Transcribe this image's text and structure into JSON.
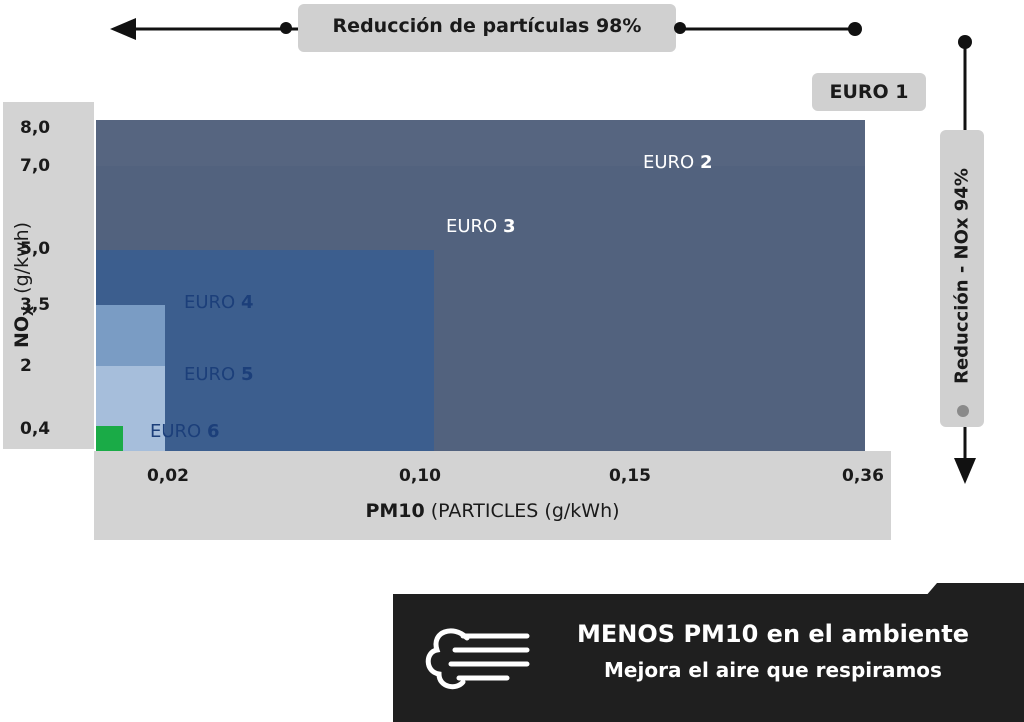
{
  "header": {
    "particle_reduction": "Reducción de partículas 98%",
    "nox_reduction": "Reducción -  NOx 94%",
    "euro1_label": "EURO 1"
  },
  "chart_data": {
    "type": "area",
    "title": "",
    "xlabel_bold": "PM10",
    "xlabel_rest": " (PARTICLES (g/kWh)",
    "ylabel_main": "NO",
    "ylabel_sub": "X",
    "ylabel_unit": "(g/kwh)",
    "x_ticks": [
      "0,02",
      "0,10",
      "0,15",
      "0,36"
    ],
    "y_ticks": [
      "8,0",
      "7,0",
      "5,0",
      "3,5",
      "2",
      "0,4"
    ],
    "series": [
      {
        "name": "EURO 1",
        "pm10": 0.36,
        "nox": 8.0,
        "color": "#52627e"
      },
      {
        "name": "EURO 2",
        "pm10": 0.15,
        "nox": 7.0,
        "color": "#52627e"
      },
      {
        "name": "EURO 3",
        "pm10": 0.1,
        "nox": 5.0,
        "color": "#3c5e8e"
      },
      {
        "name": "EURO 4",
        "pm10": 0.02,
        "nox": 3.5,
        "color": "#7a9cc4"
      },
      {
        "name": "EURO 5",
        "pm10": 0.02,
        "nox": 2.0,
        "color": "#a6bedb"
      },
      {
        "name": "EURO 6",
        "pm10": 0.01,
        "nox": 0.4,
        "color": "#cddceb"
      }
    ],
    "zone_labels": [
      {
        "prefix": "EURO ",
        "num": "2",
        "color": "#ffffff"
      },
      {
        "prefix": "EURO ",
        "num": "3",
        "color": "#ffffff"
      },
      {
        "prefix": "EURO ",
        "num": "4",
        "color": "#1c3f7a"
      },
      {
        "prefix": "EURO ",
        "num": "5",
        "color": "#1c3f7a"
      },
      {
        "prefix": "EURO ",
        "num": "6",
        "color": "#1c3f7a"
      }
    ],
    "euro6_marker_color": "#1aab47"
  },
  "banner": {
    "title": "MENOS PM10 en el ambiente",
    "subtitle": "Mejora el aire que respiramos",
    "icon": "wind-cloud-icon"
  }
}
